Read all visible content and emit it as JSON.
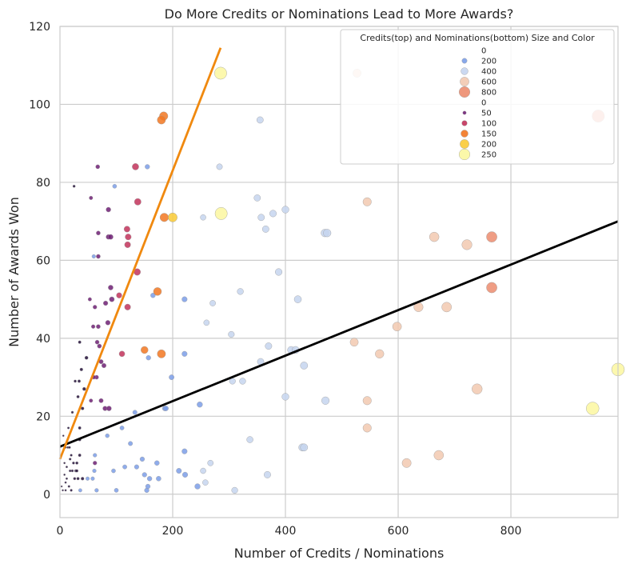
{
  "chart_data": {
    "type": "scatter",
    "title": "Do More Credits or Nominations Lead to More Awards?",
    "xlabel": "Number of Credits / Nominations",
    "ylabel": "Number of Awards Won",
    "xlim": [
      0,
      990
    ],
    "ylim": [
      -6,
      120
    ],
    "xticks": [
      0,
      200,
      400,
      600,
      800
    ],
    "yticks": [
      0,
      20,
      40,
      60,
      80,
      100,
      120
    ],
    "grid": true,
    "legend": {
      "title": "Credits(top) and Nominations(bottom) Size and Color",
      "placement": "top-right",
      "credits_entries": [
        {
          "label": "0",
          "value": 0
        },
        {
          "label": "200",
          "value": 200
        },
        {
          "label": "400",
          "value": 400
        },
        {
          "label": "600",
          "value": 600
        },
        {
          "label": "800",
          "value": 800
        }
      ],
      "nominations_entries": [
        {
          "label": "0",
          "value": 0
        },
        {
          "label": "50",
          "value": 50
        },
        {
          "label": "100",
          "value": 100
        },
        {
          "label": "150",
          "value": 150
        },
        {
          "label": "200",
          "value": 200
        },
        {
          "label": "250",
          "value": 250
        }
      ]
    },
    "credits_palette": [
      "#7b9ee8",
      "#c5d5ef",
      "#f2c9b0",
      "#ec8c6e"
    ],
    "nominations_palette": [
      "#200b36",
      "#6f1f74",
      "#c2325a",
      "#f27721",
      "#f9ca35",
      "#fbf7a0"
    ],
    "series": [
      {
        "name": "Credits",
        "points": [
          [
            155,
            84
          ],
          [
            283,
            84
          ],
          [
            97,
            79
          ],
          [
            355,
            96
          ],
          [
            350,
            76
          ],
          [
            400,
            73
          ],
          [
            378,
            72
          ],
          [
            357,
            71
          ],
          [
            254,
            71
          ],
          [
            365,
            68
          ],
          [
            470,
            67
          ],
          [
            474,
            67
          ],
          [
            388,
            57
          ],
          [
            320,
            52
          ],
          [
            165,
            51
          ],
          [
            221,
            50
          ],
          [
            422,
            50
          ],
          [
            271,
            49
          ],
          [
            260,
            44
          ],
          [
            304,
            41
          ],
          [
            370,
            38
          ],
          [
            410,
            37
          ],
          [
            418,
            37
          ],
          [
            221,
            36
          ],
          [
            157,
            35
          ],
          [
            356,
            34
          ],
          [
            433,
            33
          ],
          [
            198,
            30
          ],
          [
            306,
            29
          ],
          [
            324,
            29
          ],
          [
            400,
            25
          ],
          [
            471,
            24
          ],
          [
            248,
            23
          ],
          [
            186,
            22
          ],
          [
            188,
            22
          ],
          [
            133,
            21
          ],
          [
            110,
            17
          ],
          [
            337,
            14
          ],
          [
            430,
            12
          ],
          [
            433,
            12
          ],
          [
            125,
            13
          ],
          [
            221,
            11
          ],
          [
            62,
            10
          ],
          [
            84,
            15
          ],
          [
            267,
            8
          ],
          [
            172,
            8
          ],
          [
            146,
            9
          ],
          [
            115,
            7
          ],
          [
            136,
            7
          ],
          [
            254,
            6
          ],
          [
            222,
            5
          ],
          [
            258,
            3
          ],
          [
            368,
            5
          ],
          [
            211,
            6
          ],
          [
            159,
            4
          ],
          [
            175,
            4
          ],
          [
            244,
            2
          ],
          [
            154,
            1
          ],
          [
            156,
            2
          ],
          [
            65,
            1
          ],
          [
            36,
            1
          ],
          [
            310,
            1
          ],
          [
            58,
            4
          ],
          [
            49,
            4
          ],
          [
            61,
            6
          ],
          [
            95,
            6
          ],
          [
            150,
            5
          ],
          [
            100,
            1
          ],
          [
            60,
            61
          ],
          [
            527,
            108
          ],
          [
            545,
            75
          ],
          [
            522,
            39
          ],
          [
            567,
            36
          ],
          [
            545,
            24
          ],
          [
            545,
            17
          ],
          [
            598,
            43
          ],
          [
            636,
            48
          ],
          [
            686,
            48
          ],
          [
            664,
            66
          ],
          [
            722,
            64
          ],
          [
            766,
            66
          ],
          [
            766,
            53
          ],
          [
            740,
            27
          ],
          [
            672,
            10
          ],
          [
            615,
            8
          ],
          [
            955,
            97
          ]
        ]
      },
      {
        "name": "Nominations",
        "points": [
          [
            285,
            108
          ],
          [
            286,
            72
          ],
          [
            184,
            97
          ],
          [
            180,
            96
          ],
          [
            67,
            84
          ],
          [
            134,
            84
          ],
          [
            138,
            75
          ],
          [
            55,
            76
          ],
          [
            86,
            73
          ],
          [
            185,
            71
          ],
          [
            200,
            71
          ],
          [
            68,
            67
          ],
          [
            119,
            68
          ],
          [
            121,
            66
          ],
          [
            86,
            66
          ],
          [
            90,
            66
          ],
          [
            120,
            64
          ],
          [
            68,
            61
          ],
          [
            137,
            57
          ],
          [
            173,
            52
          ],
          [
            90,
            53
          ],
          [
            105,
            51
          ],
          [
            53,
            50
          ],
          [
            92,
            50
          ],
          [
            81,
            49
          ],
          [
            120,
            48
          ],
          [
            62,
            48
          ],
          [
            59,
            43
          ],
          [
            68,
            43
          ],
          [
            85,
            44
          ],
          [
            70,
            38
          ],
          [
            150,
            37
          ],
          [
            180,
            36
          ],
          [
            110,
            36
          ],
          [
            66,
            39
          ],
          [
            73,
            34
          ],
          [
            78,
            33
          ],
          [
            65,
            30
          ],
          [
            60,
            30
          ],
          [
            35,
            39
          ],
          [
            38,
            32
          ],
          [
            47,
            35
          ],
          [
            43,
            27
          ],
          [
            32,
            25
          ],
          [
            27,
            29
          ],
          [
            34,
            29
          ],
          [
            55,
            24
          ],
          [
            73,
            24
          ],
          [
            80,
            22
          ],
          [
            87,
            22
          ],
          [
            40,
            22
          ],
          [
            35,
            17
          ],
          [
            22,
            21
          ],
          [
            25,
            79
          ],
          [
            945,
            22
          ],
          [
            990,
            32
          ],
          [
            10,
            12
          ],
          [
            14,
            12
          ],
          [
            17,
            12
          ],
          [
            6,
            15
          ],
          [
            15,
            17
          ],
          [
            20,
            10
          ],
          [
            24,
            8
          ],
          [
            30,
            8
          ],
          [
            12,
            7
          ],
          [
            18,
            6
          ],
          [
            22,
            6
          ],
          [
            28,
            6
          ],
          [
            35,
            10
          ],
          [
            8,
            5
          ],
          [
            10,
            3
          ],
          [
            12,
            4
          ],
          [
            16,
            2
          ],
          [
            20,
            1
          ],
          [
            26,
            4
          ],
          [
            32,
            4
          ],
          [
            40,
            4
          ],
          [
            5,
            1
          ],
          [
            8,
            8
          ],
          [
            62,
            8
          ],
          [
            3,
            2
          ],
          [
            10,
            1
          ],
          [
            18,
            9
          ],
          [
            30,
            6
          ],
          [
            35,
            14
          ]
        ]
      }
    ],
    "trendlines": [
      {
        "name": "credits-trend",
        "color": "#000000",
        "x": [
          0,
          990
        ],
        "y": [
          12.2,
          70
        ]
      },
      {
        "name": "nominations-trend",
        "color": "#f0890f",
        "x": [
          0,
          285
        ],
        "y": [
          9,
          114.5
        ]
      }
    ]
  }
}
